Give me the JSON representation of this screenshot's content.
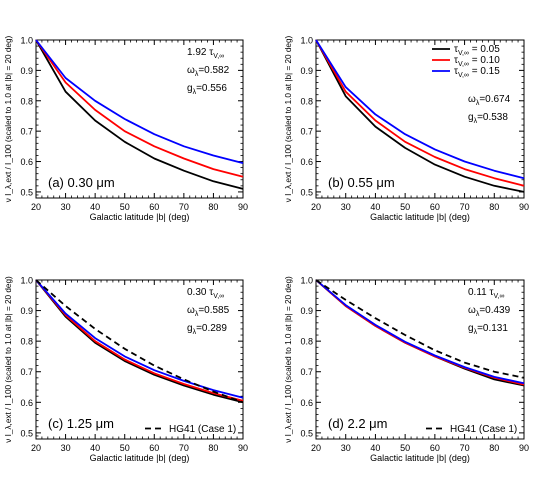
{
  "colors": {
    "black": "#000000",
    "red": "#ff0000",
    "blue": "#0000ff"
  },
  "chart_data": [
    {
      "type": "line",
      "panel_label": "(a) 0.30 μm",
      "xlabel": "Galactic latitude |b| (deg)",
      "ylabel": "ν I_λ,ext / I_100 (scaled to 1.0 at |b| = 20 deg)",
      "xlim": [
        20,
        90
      ],
      "ylim": [
        0.48,
        1.0
      ],
      "x_ticks": [
        20,
        30,
        40,
        50,
        60,
        70,
        80,
        90
      ],
      "y_ticks": [
        0.5,
        0.6,
        0.7,
        0.8,
        0.9,
        1.0
      ],
      "x_tick_labels": [
        "20",
        "30",
        "40",
        "50",
        "60",
        "70",
        "80",
        "90"
      ],
      "y_tick_labels": [
        "0.5",
        "0.6",
        "0.7",
        "0.8",
        "0.9",
        "1.0"
      ],
      "annotations": [
        "1.92 τ_V,∞",
        "ω_λ=0.582",
        "g_λ=0.556"
      ],
      "x": [
        20,
        30,
        40,
        50,
        60,
        70,
        80,
        90
      ],
      "series": [
        {
          "color": "black",
          "dashed": false,
          "values": [
            1.0,
            0.83,
            0.735,
            0.665,
            0.61,
            0.57,
            0.535,
            0.51
          ]
        },
        {
          "color": "red",
          "dashed": false,
          "values": [
            1.0,
            0.86,
            0.77,
            0.7,
            0.65,
            0.61,
            0.575,
            0.55
          ]
        },
        {
          "color": "blue",
          "dashed": false,
          "values": [
            1.0,
            0.875,
            0.8,
            0.74,
            0.69,
            0.65,
            0.62,
            0.595
          ]
        }
      ]
    },
    {
      "type": "line",
      "panel_label": "(b) 0.55 μm",
      "xlabel": "Galactic latitude |b| (deg)",
      "ylabel": "ν I_λ,ext / I_100 (scaled to 1.0 at |b| = 20 deg)",
      "xlim": [
        20,
        90
      ],
      "ylim": [
        0.48,
        1.0
      ],
      "x_ticks": [
        20,
        30,
        40,
        50,
        60,
        70,
        80,
        90
      ],
      "y_ticks": [
        0.5,
        0.6,
        0.7,
        0.8,
        0.9,
        1.0
      ],
      "x_tick_labels": [
        "20",
        "30",
        "40",
        "50",
        "60",
        "70",
        "80",
        "90"
      ],
      "y_tick_labels": [
        "0.5",
        "0.6",
        "0.7",
        "0.8",
        "0.9",
        "1.0"
      ],
      "legend": {
        "position": "top-right",
        "entries": [
          "τ_V,∞ = 0.05",
          "τ_V,∞ = 0.10",
          "τ_V,∞ = 0.15"
        ]
      },
      "annotations": [
        "ω_λ=0.674",
        "g_λ=0.538"
      ],
      "x": [
        20,
        30,
        40,
        50,
        60,
        70,
        80,
        90
      ],
      "series": [
        {
          "color": "black",
          "dashed": false,
          "values": [
            1.0,
            0.815,
            0.715,
            0.645,
            0.59,
            0.55,
            0.52,
            0.5
          ]
        },
        {
          "color": "red",
          "dashed": false,
          "values": [
            1.0,
            0.83,
            0.735,
            0.665,
            0.615,
            0.575,
            0.545,
            0.52
          ]
        },
        {
          "color": "blue",
          "dashed": false,
          "values": [
            1.0,
            0.845,
            0.755,
            0.69,
            0.64,
            0.6,
            0.57,
            0.545
          ]
        }
      ]
    },
    {
      "type": "line",
      "panel_label": "(c) 1.25 μm",
      "xlabel": "Galactic latitude |b| (deg)",
      "ylabel": "ν I_λ,ext / I_100 (scaled to 1.0 at |b| = 20 deg)",
      "xlim": [
        20,
        90
      ],
      "ylim": [
        0.48,
        1.0
      ],
      "x_ticks": [
        20,
        30,
        40,
        50,
        60,
        70,
        80,
        90
      ],
      "y_ticks": [
        0.5,
        0.6,
        0.7,
        0.8,
        0.9,
        1.0
      ],
      "x_tick_labels": [
        "20",
        "30",
        "40",
        "50",
        "60",
        "70",
        "80",
        "90"
      ],
      "y_tick_labels": [
        "0.5",
        "0.6",
        "0.7",
        "0.8",
        "0.9",
        "1.0"
      ],
      "legend": {
        "position": "bottom-right",
        "entries": [
          "HG41 (Case 1)"
        ]
      },
      "annotations": [
        "0.30 τ_V,∞",
        "ω_λ=0.585",
        "g_λ=0.289"
      ],
      "x": [
        20,
        30,
        40,
        50,
        60,
        70,
        80,
        90
      ],
      "series": [
        {
          "color": "black",
          "dashed": false,
          "values": [
            1.0,
            0.88,
            0.795,
            0.735,
            0.69,
            0.655,
            0.625,
            0.6
          ]
        },
        {
          "color": "red",
          "dashed": false,
          "values": [
            1.0,
            0.885,
            0.8,
            0.74,
            0.695,
            0.66,
            0.63,
            0.605
          ]
        },
        {
          "color": "blue",
          "dashed": false,
          "values": [
            1.0,
            0.89,
            0.81,
            0.75,
            0.705,
            0.67,
            0.64,
            0.615
          ]
        },
        {
          "name": "HG41 (Case 1)",
          "color": "black",
          "dashed": true,
          "values": [
            1.0,
            0.915,
            0.84,
            0.775,
            0.72,
            0.675,
            0.635,
            0.6
          ]
        }
      ]
    },
    {
      "type": "line",
      "panel_label": "(d) 2.2 μm",
      "xlabel": "Galactic latitude |b| (deg)",
      "ylabel": "ν I_λ,ext / I_100 (scaled to 1.0 at |b| = 20 deg)",
      "xlim": [
        20,
        90
      ],
      "ylim": [
        0.48,
        1.0
      ],
      "x_ticks": [
        20,
        30,
        40,
        50,
        60,
        70,
        80,
        90
      ],
      "y_ticks": [
        0.5,
        0.6,
        0.7,
        0.8,
        0.9,
        1.0
      ],
      "x_tick_labels": [
        "20",
        "30",
        "40",
        "50",
        "60",
        "70",
        "80",
        "90"
      ],
      "y_tick_labels": [
        "0.5",
        "0.6",
        "0.7",
        "0.8",
        "0.9",
        "1.0"
      ],
      "legend": {
        "position": "bottom-right",
        "entries": [
          "HG41 (Case 1)"
        ]
      },
      "annotations": [
        "0.11 τ_V,∞",
        "ω_λ=0.439",
        "g_λ=0.131"
      ],
      "x": [
        20,
        30,
        40,
        50,
        60,
        70,
        80,
        90
      ],
      "series": [
        {
          "color": "black",
          "dashed": false,
          "values": [
            1.0,
            0.915,
            0.85,
            0.795,
            0.75,
            0.71,
            0.675,
            0.655
          ]
        },
        {
          "color": "red",
          "dashed": false,
          "values": [
            1.0,
            0.915,
            0.85,
            0.795,
            0.75,
            0.713,
            0.68,
            0.658
          ]
        },
        {
          "color": "blue",
          "dashed": false,
          "values": [
            1.0,
            0.918,
            0.853,
            0.798,
            0.753,
            0.715,
            0.683,
            0.662
          ]
        },
        {
          "name": "HG41 (Case 1)",
          "color": "black",
          "dashed": true,
          "values": [
            1.0,
            0.935,
            0.875,
            0.82,
            0.77,
            0.73,
            0.7,
            0.68
          ]
        }
      ]
    }
  ]
}
